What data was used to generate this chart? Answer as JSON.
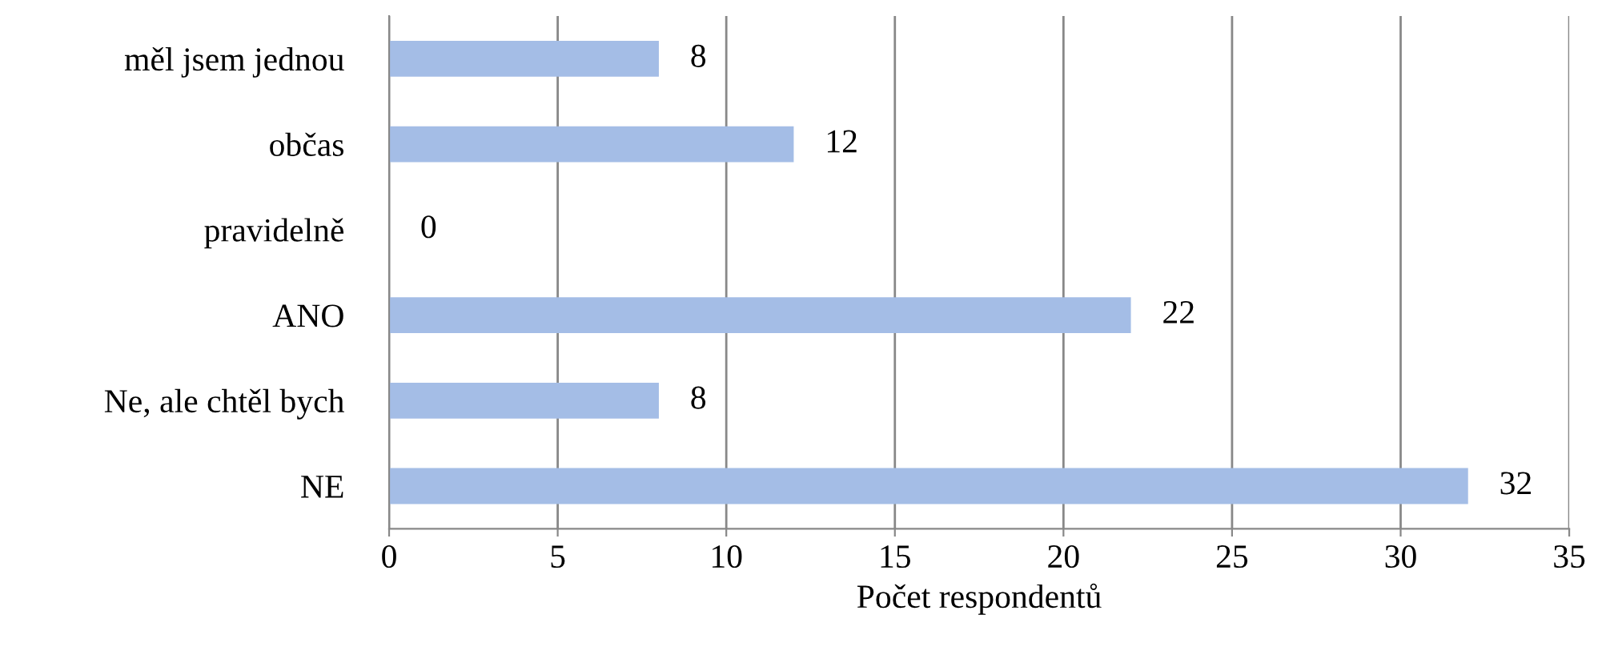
{
  "chart_data": {
    "type": "bar",
    "orientation": "horizontal",
    "xlabel": "Počet respondentů",
    "categories": [
      "měl jsem jednou",
      "občas",
      "pravidelně",
      "ANO",
      "Ne, ale chtěl bych",
      "NE"
    ],
    "values": [
      8,
      12,
      0,
      22,
      8,
      32
    ],
    "color": "#a4bde6",
    "xlim": [
      0,
      35
    ],
    "xticks": [
      0,
      5,
      10,
      15,
      20,
      25,
      30,
      35
    ],
    "grid": "x",
    "data_labels": true
  }
}
